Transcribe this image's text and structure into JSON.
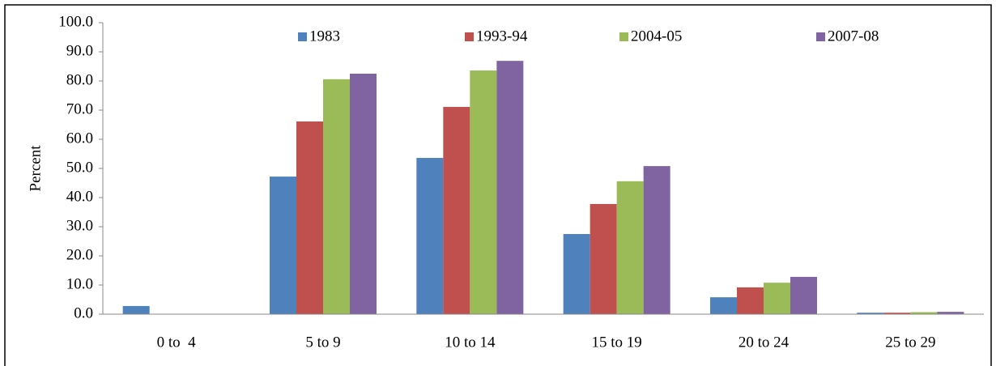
{
  "chart_data": {
    "type": "bar",
    "y_label": "Percent",
    "categories": [
      "0 to  4",
      "5 to 9",
      "10 to 14",
      "15 to 19",
      "20 to 24",
      "25 to 29"
    ],
    "series": [
      {
        "name": "1983",
        "color": "#4f81bd",
        "values": [
          2.8,
          47.2,
          53.6,
          27.5,
          5.8,
          0.5
        ]
      },
      {
        "name": "1993-94",
        "color": "#c0504d",
        "values": [
          0,
          66.1,
          71.1,
          37.8,
          9.2,
          0.5
        ]
      },
      {
        "name": "2004-05",
        "color": "#9bbb59",
        "values": [
          0,
          80.6,
          83.6,
          45.6,
          10.8,
          0.7
        ]
      },
      {
        "name": "2007-08",
        "color": "#8064a2",
        "values": [
          0,
          82.5,
          86.9,
          50.8,
          12.8,
          0.8
        ]
      }
    ],
    "ylim": [
      0,
      100
    ],
    "yticks": [
      {
        "value": 0,
        "label": "0.0"
      },
      {
        "value": 10,
        "label": "10.0"
      },
      {
        "value": 20,
        "label": "20.0"
      },
      {
        "value": 30,
        "label": "30.0"
      },
      {
        "value": 40,
        "label": "40.0"
      },
      {
        "value": 50,
        "label": "50.0"
      },
      {
        "value": 60,
        "label": "60.0"
      },
      {
        "value": 70,
        "label": "70.0"
      },
      {
        "value": 80,
        "label": "80.0"
      },
      {
        "value": 90,
        "label": "90.0"
      },
      {
        "value": 100,
        "label": "100.0"
      }
    ],
    "grid": false,
    "legend": "top"
  }
}
